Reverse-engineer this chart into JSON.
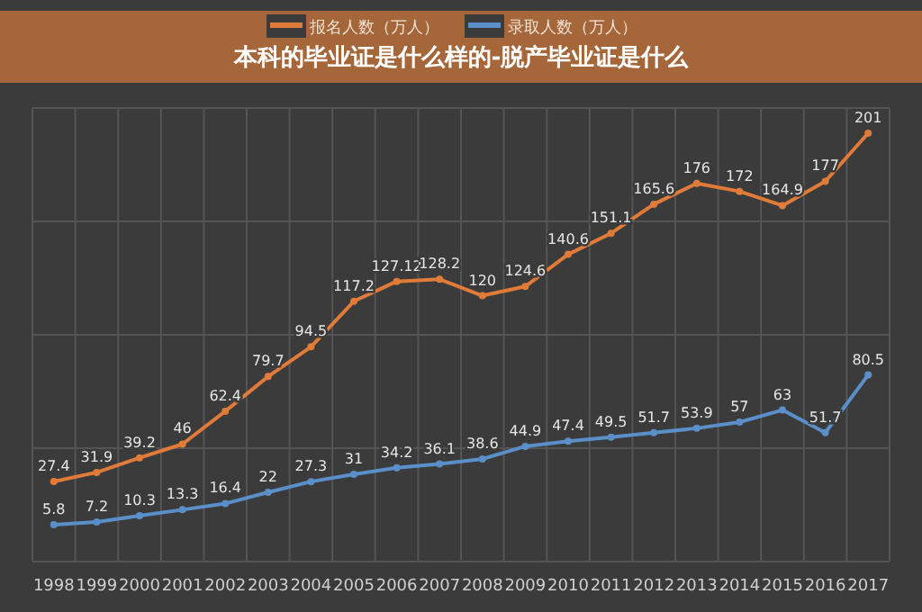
{
  "chart_data": {
    "type": "line",
    "title": "本科的毕业证是什么样的-脱产毕业证是什么",
    "categories": [
      "1998",
      "1999",
      "2000",
      "2001",
      "2002",
      "2003",
      "2004",
      "2005",
      "2006",
      "2007",
      "2008",
      "2009",
      "2010",
      "2011",
      "2012",
      "2013",
      "2014",
      "2015",
      "2016",
      "2017"
    ],
    "series": [
      {
        "name": "报名人数（万人）",
        "color": "#e07b39",
        "values": [
          27.4,
          31.9,
          39.2,
          46,
          62.4,
          79.7,
          94.5,
          117.2,
          127.12,
          128.2,
          120,
          124.6,
          140.6,
          151.1,
          165.6,
          176,
          172,
          164.9,
          177,
          201
        ]
      },
      {
        "name": "录取人数（万人）",
        "color": "#5b8fc9",
        "values": [
          5.8,
          7.2,
          10.3,
          13.3,
          16.4,
          22,
          27.3,
          31,
          34.2,
          36.1,
          38.6,
          44.9,
          47.4,
          49.5,
          51.7,
          53.9,
          57,
          63,
          51.7,
          80.5
        ]
      }
    ],
    "data_labels": true,
    "grid": true,
    "legend": "top",
    "marker": "circle",
    "line_style": "solid"
  }
}
